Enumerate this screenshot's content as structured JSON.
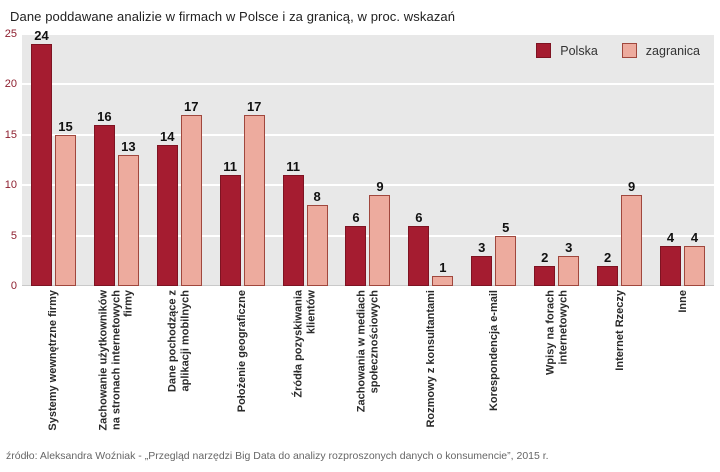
{
  "title": "Dane poddawane analizie w firmach w Polsce i za granicą, w proc. wskazań",
  "source": "źródło: Aleksandra Woźniak - „Przegląd narzędzi Big Data do analizy rozproszonych danych o konsumencie”, 2015 r.",
  "legend": {
    "polska": "Polska",
    "zagranica": "zagranica"
  },
  "colors": {
    "polska": "#a51c30",
    "polska_border": "#7e1322",
    "zagranica": "#edab9e",
    "zagranica_border": "#a0473d",
    "plot_bg": "#e8e8e8",
    "grid": "#ffffff",
    "tick_text": "#8e1f2f"
  },
  "chart_data": {
    "type": "bar",
    "title": "Dane poddawane analizie w firmach w Polsce i za granicą, w proc. wskazań",
    "xlabel": "",
    "ylabel": "proc. wskazań",
    "ylim": [
      0,
      25
    ],
    "yticks": [
      0,
      5,
      10,
      15,
      20,
      25
    ],
    "grid": true,
    "legend_position": "top-right",
    "categories": [
      "Systemy wewnętrzne firmy",
      "Zachowanie użytkowników na stronach internetowych firmy",
      "Dane pochodzące z aplikacji mobilnych",
      "Położenie geograficzne",
      "Źródła pozyskiwania klientów",
      "Zachowania w mediach społecznościowych",
      "Rozmowy z konsultantami",
      "Korespondencja e-mail",
      "Wpisy na forach internetowych",
      "Internet Rzeczy",
      "Inne"
    ],
    "series": [
      {
        "name": "Polska",
        "values": [
          24,
          16,
          14,
          11,
          11,
          6,
          6,
          3,
          2,
          2,
          4
        ]
      },
      {
        "name": "zagranica",
        "values": [
          15,
          13,
          17,
          17,
          8,
          9,
          1,
          5,
          3,
          9,
          4
        ]
      }
    ]
  }
}
